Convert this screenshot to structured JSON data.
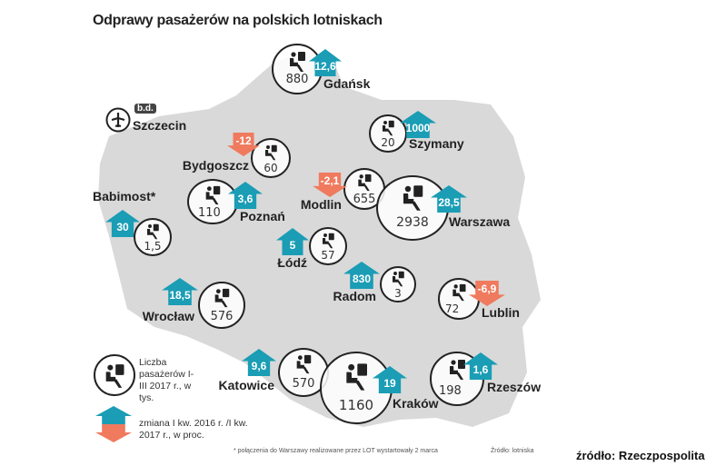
{
  "title": "Odprawy pasażerów na polskich lotniskach",
  "colors": {
    "increase": "#1a9db5",
    "decrease": "#f07a5e",
    "map": "#d9d9d9"
  },
  "airports": {
    "gdansk": {
      "name": "Gdańsk",
      "passengers": "880",
      "change": "12,6",
      "direction": "up"
    },
    "szczecin": {
      "name": "Szczecin",
      "passengers": "",
      "change": "b.d.",
      "icon": "airplane-icon"
    },
    "szymany": {
      "name": "Szymany",
      "passengers": "20",
      "change": "1000",
      "direction": "up"
    },
    "bydgoszcz": {
      "name": "Bydgoszcz",
      "passengers": "60",
      "change": "-12",
      "direction": "down"
    },
    "poznan": {
      "name": "Poznań",
      "passengers": "110",
      "change": "3,6",
      "direction": "up"
    },
    "babimost": {
      "name": "Babimost*",
      "passengers": "1,5",
      "change": "30",
      "direction": "up"
    },
    "modlin": {
      "name": "Modlin",
      "passengers": "655",
      "change": "-2,1",
      "direction": "down"
    },
    "warszawa": {
      "name": "Warszawa",
      "passengers": "2938",
      "change": "28,5",
      "direction": "up"
    },
    "lodz": {
      "name": "Łódź",
      "passengers": "57",
      "change": "5",
      "direction": "up"
    },
    "radom": {
      "name": "Radom",
      "passengers": "3",
      "change": "830",
      "direction": "up"
    },
    "lublin": {
      "name": "Lublin",
      "passengers": "72",
      "change": "-6,9",
      "direction": "down"
    },
    "wroclaw": {
      "name": "Wrocław",
      "passengers": "576",
      "change": "18,5",
      "direction": "up"
    },
    "katowice": {
      "name": "Katowice",
      "passengers": "570",
      "change": "9,6",
      "direction": "up"
    },
    "krakow": {
      "name": "Kraków",
      "passengers": "1160",
      "change": "19",
      "direction": "up"
    },
    "rzeszow": {
      "name": "Rzeszów",
      "passengers": "198",
      "change": "1,6",
      "direction": "up"
    }
  },
  "legend": {
    "passengers": "Liczba pasażerów I-III 2017 r., w tys.",
    "change": "zmiana I kw. 2016 r. /I kw. 2017 r., w proc."
  },
  "footnote": "* połączenia do Warszawy realizowane przez LOT wystartowały 2 marca",
  "source_inner": "Źródło: lotniska",
  "source": "źródło: Rzeczpospolita"
}
